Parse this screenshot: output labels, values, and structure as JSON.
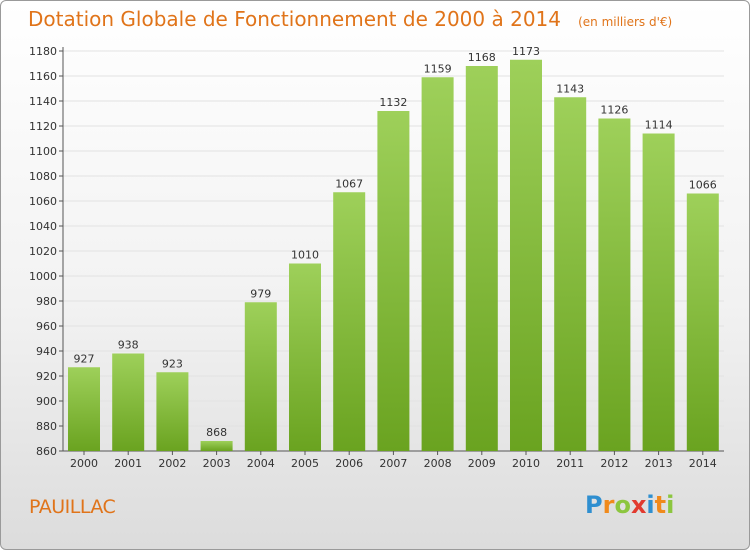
{
  "header": {
    "title": "Dotation Globale de Fonctionnement de 2000 à 2014",
    "unit": "(en milliers d'€)"
  },
  "footer": {
    "location": "PAUILLAC",
    "logo_text": "Proxiti",
    "logo_letters": [
      {
        "char": "P",
        "color": "#2f8fd0"
      },
      {
        "char": "r",
        "color": "#f08a1c"
      },
      {
        "char": "o",
        "color": "#8cc63f"
      },
      {
        "char": "x",
        "color": "#e23a2f"
      },
      {
        "char": "i",
        "color": "#2f8fd0"
      },
      {
        "char": "t",
        "color": "#f08a1c"
      },
      {
        "char": "i",
        "color": "#8cc63f"
      }
    ]
  },
  "chart_data": {
    "type": "bar",
    "title": "Dotation Globale de Fonctionnement de 2000 à 2014",
    "categories": [
      "2000",
      "2001",
      "2002",
      "2003",
      "2004",
      "2005",
      "2006",
      "2007",
      "2008",
      "2009",
      "2010",
      "2011",
      "2012",
      "2013",
      "2014"
    ],
    "values": [
      927,
      938,
      923,
      868,
      979,
      1010,
      1067,
      1132,
      1159,
      1168,
      1173,
      1143,
      1126,
      1114,
      1066
    ],
    "ylim": [
      860,
      1180
    ],
    "yticks": [
      860,
      880,
      900,
      920,
      940,
      960,
      980,
      1000,
      1020,
      1040,
      1060,
      1080,
      1100,
      1120,
      1140,
      1160,
      1180
    ],
    "grid": true,
    "bar_color_top": "#9ed05a",
    "bar_color_bottom": "#6aa320",
    "accent_color": "#e0741a"
  }
}
